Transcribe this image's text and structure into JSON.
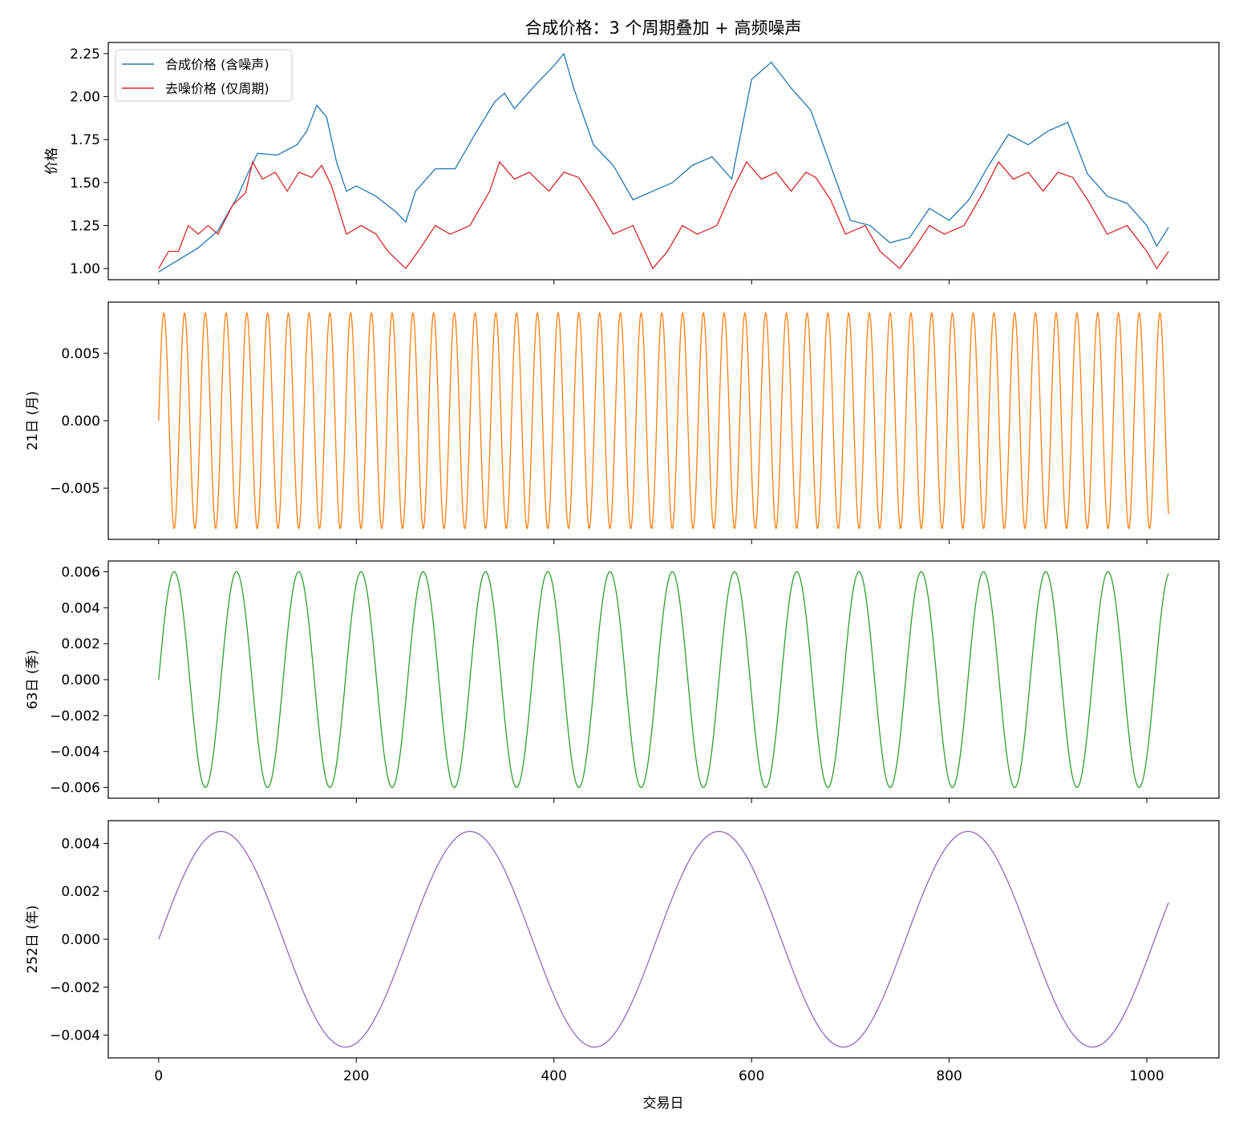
{
  "figure": {
    "title": "合成价格：3 个周期叠加 + 高频噪声",
    "xlabel": "交易日",
    "x_ticks": [
      "0",
      "200",
      "400",
      "600",
      "800",
      "1000"
    ]
  },
  "chart_data": [
    {
      "type": "line",
      "title": "合成价格：3 个周期叠加 + 高频噪声",
      "xlabel": "",
      "ylabel": "价格",
      "xlim": [
        -51,
        1073
      ],
      "ylim": [
        0.935,
        2.315
      ],
      "y_ticks": [
        "1.00",
        "1.25",
        "1.50",
        "1.75",
        "2.00",
        "2.25"
      ],
      "legend": "upper-left",
      "grid": false,
      "series": [
        {
          "name": "合成价格 (含噪声)",
          "color": "#1f77b4",
          "x": [
            0,
            20,
            40,
            60,
            80,
            90,
            100,
            120,
            140,
            150,
            160,
            170,
            180,
            190,
            200,
            220,
            240,
            250,
            260,
            280,
            300,
            320,
            340,
            350,
            360,
            380,
            400,
            410,
            420,
            440,
            460,
            480,
            500,
            520,
            540,
            560,
            580,
            600,
            620,
            640,
            660,
            680,
            700,
            720,
            740,
            760,
            780,
            800,
            820,
            840,
            860,
            880,
            900,
            920,
            940,
            960,
            980,
            1000,
            1010,
            1022
          ],
          "y": [
            0.98,
            1.05,
            1.12,
            1.22,
            1.42,
            1.55,
            1.67,
            1.66,
            1.72,
            1.8,
            1.95,
            1.88,
            1.62,
            1.45,
            1.48,
            1.42,
            1.33,
            1.27,
            1.45,
            1.58,
            1.58,
            1.78,
            1.97,
            2.02,
            1.93,
            2.06,
            2.18,
            2.25,
            2.05,
            1.72,
            1.6,
            1.4,
            1.45,
            1.5,
            1.6,
            1.65,
            1.52,
            2.1,
            2.2,
            2.05,
            1.92,
            1.6,
            1.28,
            1.25,
            1.15,
            1.18,
            1.35,
            1.28,
            1.4,
            1.6,
            1.78,
            1.72,
            1.8,
            1.85,
            1.55,
            1.42,
            1.38,
            1.25,
            1.13,
            1.24
          ]
        },
        {
          "name": "去噪价格 (仅周期)",
          "color": "#d62728",
          "x": [
            0,
            10,
            20,
            30,
            40,
            50,
            60,
            75,
            88,
            95,
            105,
            118,
            130,
            142,
            155,
            165,
            175,
            190,
            205,
            220,
            232,
            250,
            265,
            280,
            295,
            315,
            335,
            345,
            360,
            375,
            395,
            410,
            425,
            440,
            460,
            480,
            500,
            515,
            530,
            545,
            565,
            580,
            595,
            610,
            625,
            640,
            655,
            665,
            680,
            695,
            715,
            730,
            750,
            765,
            780,
            795,
            815,
            835,
            850,
            865,
            880,
            895,
            910,
            925,
            940,
            960,
            980,
            1000,
            1010,
            1022
          ],
          "y": [
            1.0,
            1.1,
            1.1,
            1.25,
            1.2,
            1.25,
            1.2,
            1.37,
            1.44,
            1.62,
            1.52,
            1.56,
            1.45,
            1.56,
            1.53,
            1.6,
            1.48,
            1.2,
            1.25,
            1.2,
            1.1,
            1.0,
            1.12,
            1.25,
            1.2,
            1.25,
            1.45,
            1.62,
            1.52,
            1.56,
            1.45,
            1.56,
            1.53,
            1.4,
            1.2,
            1.25,
            1.0,
            1.1,
            1.25,
            1.2,
            1.25,
            1.45,
            1.62,
            1.52,
            1.56,
            1.45,
            1.56,
            1.53,
            1.4,
            1.2,
            1.25,
            1.1,
            1.0,
            1.12,
            1.25,
            1.2,
            1.25,
            1.45,
            1.62,
            1.52,
            1.56,
            1.45,
            1.56,
            1.53,
            1.4,
            1.2,
            1.25,
            1.1,
            1.0,
            1.1
          ]
        }
      ]
    },
    {
      "type": "line",
      "xlabel": "",
      "ylabel": "21日 (月)",
      "xlim": [
        -51,
        1073
      ],
      "ylim": [
        -0.0088,
        0.0088
      ],
      "y_ticks": [
        "0.005",
        "0.000",
        "−0.005"
      ],
      "grid": false,
      "series": [
        {
          "color": "#ff7f0e",
          "function": "sine",
          "amplitude": 0.008,
          "period": 21,
          "x_range": [
            0,
            1022
          ]
        }
      ]
    },
    {
      "type": "line",
      "xlabel": "",
      "ylabel": "63日 (季)",
      "xlim": [
        -51,
        1073
      ],
      "ylim": [
        -0.0066,
        0.0066
      ],
      "y_ticks": [
        "0.006",
        "0.004",
        "0.002",
        "0.000",
        "−0.002",
        "−0.004",
        "−0.006"
      ],
      "grid": false,
      "series": [
        {
          "color": "#2ca02c",
          "function": "sine",
          "amplitude": 0.006,
          "period": 63,
          "x_range": [
            0,
            1022
          ]
        }
      ]
    },
    {
      "type": "line",
      "xlabel": "交易日",
      "ylabel": "252日 (年)",
      "xlim": [
        -51,
        1073
      ],
      "ylim": [
        -0.00495,
        0.00495
      ],
      "y_ticks": [
        "0.004",
        "0.002",
        "0.000",
        "−0.002",
        "−0.004"
      ],
      "grid": false,
      "series": [
        {
          "color": "#9467bd",
          "function": "sine",
          "amplitude": 0.0045,
          "period": 252,
          "x_range": [
            0,
            1022
          ]
        }
      ]
    }
  ]
}
